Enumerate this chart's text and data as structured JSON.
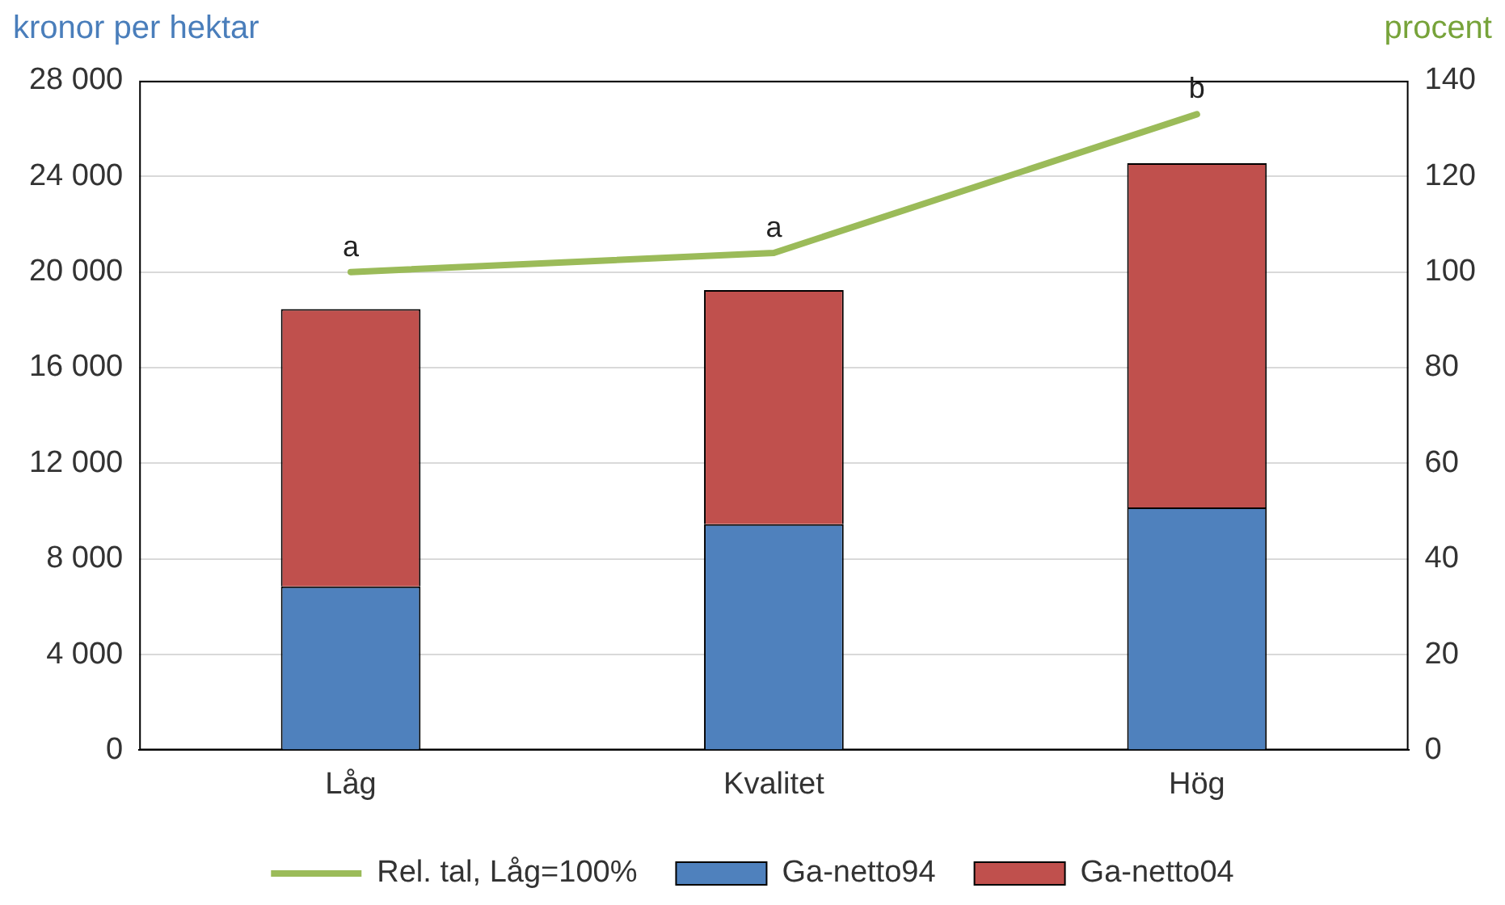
{
  "chart_data": {
    "type": "bar",
    "stacked": true,
    "categories": [
      "Låg",
      "Kvalitet",
      "Hög"
    ],
    "series": [
      {
        "name": "Ga-netto94",
        "color": "#4f81bd",
        "values": [
          6850,
          9450,
          10150
        ]
      },
      {
        "name": "Ga-netto04",
        "color": "#c0504d",
        "values": [
          11600,
          9800,
          14400
        ]
      },
      {
        "name": "Rel. tal, Låg=100%",
        "type": "line",
        "axis": "y2",
        "color": "#9bbb59",
        "values": [
          100,
          104,
          133
        ]
      }
    ],
    "ylabel": "kronor per hektar",
    "y2label": "procent",
    "ylim": [
      0,
      28000
    ],
    "yticks": [
      {
        "value": 0,
        "label": "0"
      },
      {
        "value": 4000,
        "label": "4 000"
      },
      {
        "value": 8000,
        "label": "8 000"
      },
      {
        "value": 12000,
        "label": "12 000"
      },
      {
        "value": 16000,
        "label": "16 000"
      },
      {
        "value": 20000,
        "label": "20 000"
      },
      {
        "value": 24000,
        "label": "24 000"
      },
      {
        "value": 28000,
        "label": "28 000"
      }
    ],
    "y2lim": [
      0,
      140
    ],
    "y2ticks": [
      0,
      20,
      40,
      60,
      80,
      100,
      120,
      140
    ],
    "annotations": [
      "a",
      "a",
      "b"
    ],
    "grid": "y",
    "legend": "bottom"
  }
}
